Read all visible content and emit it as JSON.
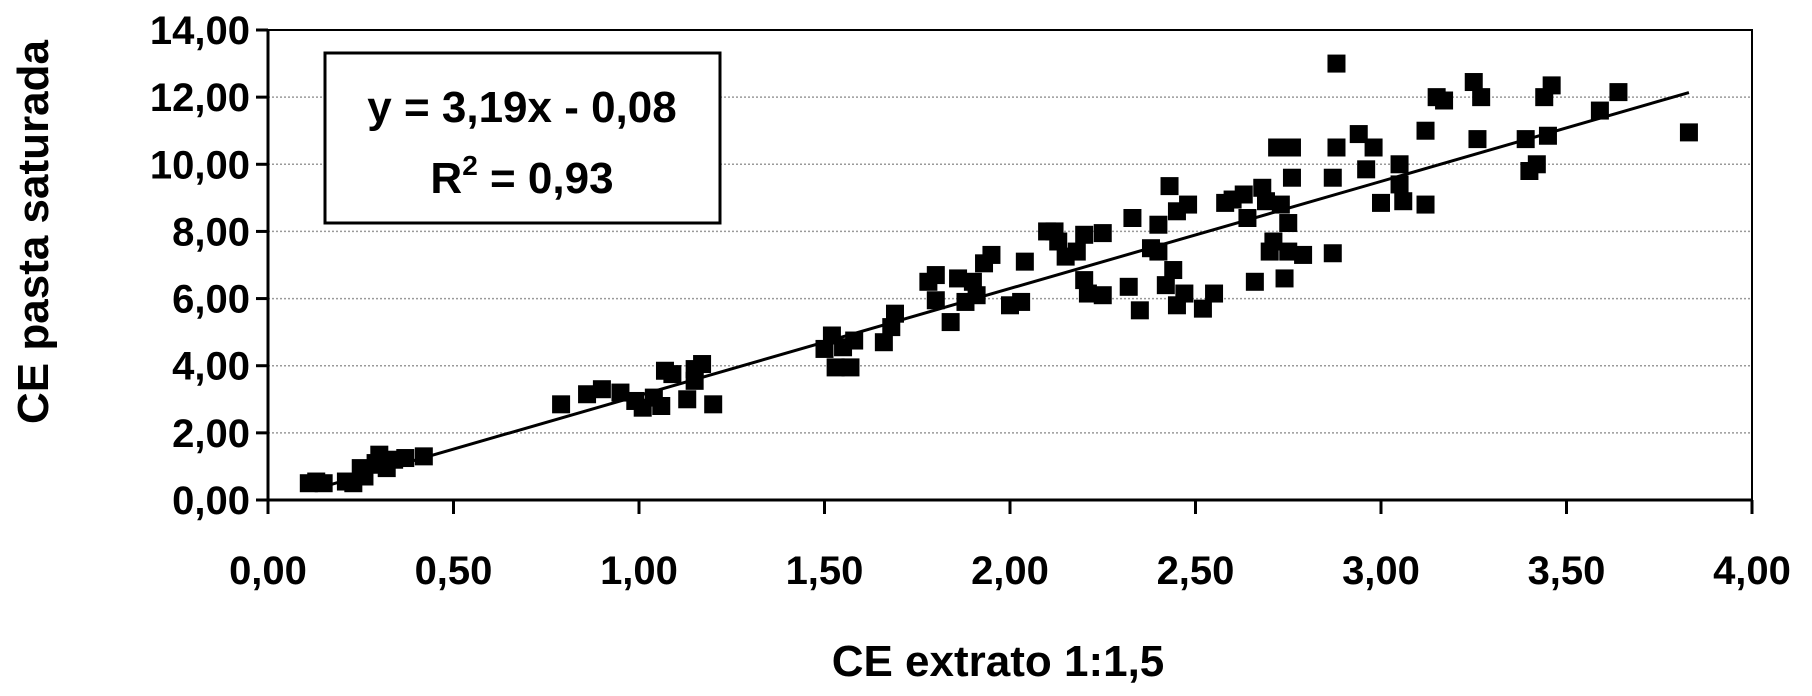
{
  "chart_data": {
    "type": "scatter",
    "title": "",
    "xlabel": "CE extrato 1:1,5",
    "ylabel": "CE pasta saturada",
    "xlim": [
      0,
      4
    ],
    "ylim": [
      0,
      14
    ],
    "x_ticks": [
      0,
      0.5,
      1.0,
      1.5,
      2.0,
      2.5,
      3.0,
      3.5,
      4.0
    ],
    "x_tick_labels": [
      "0,00",
      "0,50",
      "1,00",
      "1,50",
      "2,00",
      "2,50",
      "3,00",
      "3,50",
      "4,00"
    ],
    "y_ticks": [
      0,
      2,
      4,
      6,
      8,
      10,
      12,
      14
    ],
    "y_tick_labels": [
      "0,00",
      "2,00",
      "4,00",
      "6,00",
      "8,00",
      "10,00",
      "12,00",
      "14,00"
    ],
    "grid": {
      "horizontal": true,
      "vertical": false
    },
    "annotation": {
      "equation": "y = 3,19x - 0,08",
      "r2_prefix": "R",
      "r2_sup": "2",
      "r2_value": " = 0,93"
    },
    "trendline": {
      "slope": 3.19,
      "intercept": -0.08,
      "x_range": [
        0.12,
        3.83
      ]
    },
    "series": [
      {
        "marker": "square",
        "color": "#000000",
        "points": [
          [
            0.11,
            0.5
          ],
          [
            0.13,
            0.55
          ],
          [
            0.15,
            0.5
          ],
          [
            0.21,
            0.55
          ],
          [
            0.23,
            0.5
          ],
          [
            0.25,
            0.95
          ],
          [
            0.26,
            0.7
          ],
          [
            0.29,
            1.1
          ],
          [
            0.3,
            1.35
          ],
          [
            0.31,
            1.05
          ],
          [
            0.32,
            0.95
          ],
          [
            0.34,
            1.2
          ],
          [
            0.37,
            1.25
          ],
          [
            0.42,
            1.3
          ],
          [
            0.79,
            2.85
          ],
          [
            0.86,
            3.15
          ],
          [
            0.9,
            3.3
          ],
          [
            0.95,
            3.2
          ],
          [
            0.99,
            2.95
          ],
          [
            1.01,
            2.75
          ],
          [
            1.04,
            3.05
          ],
          [
            1.06,
            2.8
          ],
          [
            1.07,
            3.85
          ],
          [
            1.09,
            3.75
          ],
          [
            1.13,
            3.0
          ],
          [
            1.15,
            3.9
          ],
          [
            1.17,
            4.05
          ],
          [
            1.2,
            2.85
          ],
          [
            1.15,
            3.55
          ],
          [
            1.5,
            4.5
          ],
          [
            1.52,
            4.9
          ],
          [
            1.53,
            3.95
          ],
          [
            1.55,
            4.55
          ],
          [
            1.57,
            3.95
          ],
          [
            1.58,
            4.75
          ],
          [
            1.66,
            4.7
          ],
          [
            1.68,
            5.15
          ],
          [
            1.69,
            5.55
          ],
          [
            1.78,
            6.5
          ],
          [
            1.8,
            6.7
          ],
          [
            1.8,
            5.95
          ],
          [
            1.84,
            5.3
          ],
          [
            1.86,
            6.6
          ],
          [
            1.88,
            5.9
          ],
          [
            1.9,
            6.5
          ],
          [
            1.91,
            6.1
          ],
          [
            1.93,
            7.05
          ],
          [
            1.95,
            7.3
          ],
          [
            2.0,
            5.8
          ],
          [
            2.03,
            5.9
          ],
          [
            2.04,
            7.1
          ],
          [
            2.1,
            8.0
          ],
          [
            2.12,
            8.0
          ],
          [
            2.13,
            7.7
          ],
          [
            2.15,
            7.25
          ],
          [
            2.18,
            7.4
          ],
          [
            2.2,
            6.55
          ],
          [
            2.21,
            6.15
          ],
          [
            2.2,
            7.9
          ],
          [
            2.25,
            6.1
          ],
          [
            2.25,
            7.95
          ],
          [
            2.32,
            6.35
          ],
          [
            2.33,
            8.4
          ],
          [
            2.35,
            5.65
          ],
          [
            2.38,
            7.5
          ],
          [
            2.4,
            7.4
          ],
          [
            2.4,
            8.2
          ],
          [
            2.42,
            6.4
          ],
          [
            2.43,
            9.35
          ],
          [
            2.44,
            6.85
          ],
          [
            2.45,
            5.8
          ],
          [
            2.45,
            8.6
          ],
          [
            2.47,
            6.15
          ],
          [
            2.48,
            8.8
          ],
          [
            2.52,
            5.7
          ],
          [
            2.55,
            6.15
          ],
          [
            2.58,
            8.85
          ],
          [
            2.6,
            8.95
          ],
          [
            2.63,
            9.1
          ],
          [
            2.64,
            8.4
          ],
          [
            2.66,
            6.5
          ],
          [
            2.68,
            9.3
          ],
          [
            2.69,
            8.9
          ],
          [
            2.7,
            7.4
          ],
          [
            2.71,
            7.7
          ],
          [
            2.72,
            10.5
          ],
          [
            2.73,
            8.8
          ],
          [
            2.74,
            6.6
          ],
          [
            2.75,
            8.25
          ],
          [
            2.75,
            7.4
          ],
          [
            2.76,
            9.6
          ],
          [
            2.76,
            10.5
          ],
          [
            2.79,
            7.3
          ],
          [
            2.87,
            7.35
          ],
          [
            2.87,
            9.6
          ],
          [
            2.88,
            10.5
          ],
          [
            2.88,
            13.0
          ],
          [
            2.94,
            10.9
          ],
          [
            2.96,
            9.85
          ],
          [
            2.98,
            10.5
          ],
          [
            3.0,
            8.85
          ],
          [
            3.05,
            10.0
          ],
          [
            3.05,
            9.4
          ],
          [
            3.06,
            8.9
          ],
          [
            3.12,
            8.8
          ],
          [
            3.12,
            11.0
          ],
          [
            3.15,
            12.0
          ],
          [
            3.17,
            11.9
          ],
          [
            3.25,
            12.45
          ],
          [
            3.26,
            10.75
          ],
          [
            3.27,
            12.0
          ],
          [
            3.39,
            10.75
          ],
          [
            3.4,
            9.8
          ],
          [
            3.42,
            10.0
          ],
          [
            3.44,
            12.0
          ],
          [
            3.45,
            10.85
          ],
          [
            3.46,
            12.35
          ],
          [
            3.59,
            11.6
          ],
          [
            3.64,
            12.15
          ],
          [
            3.83,
            10.95
          ]
        ]
      }
    ]
  }
}
